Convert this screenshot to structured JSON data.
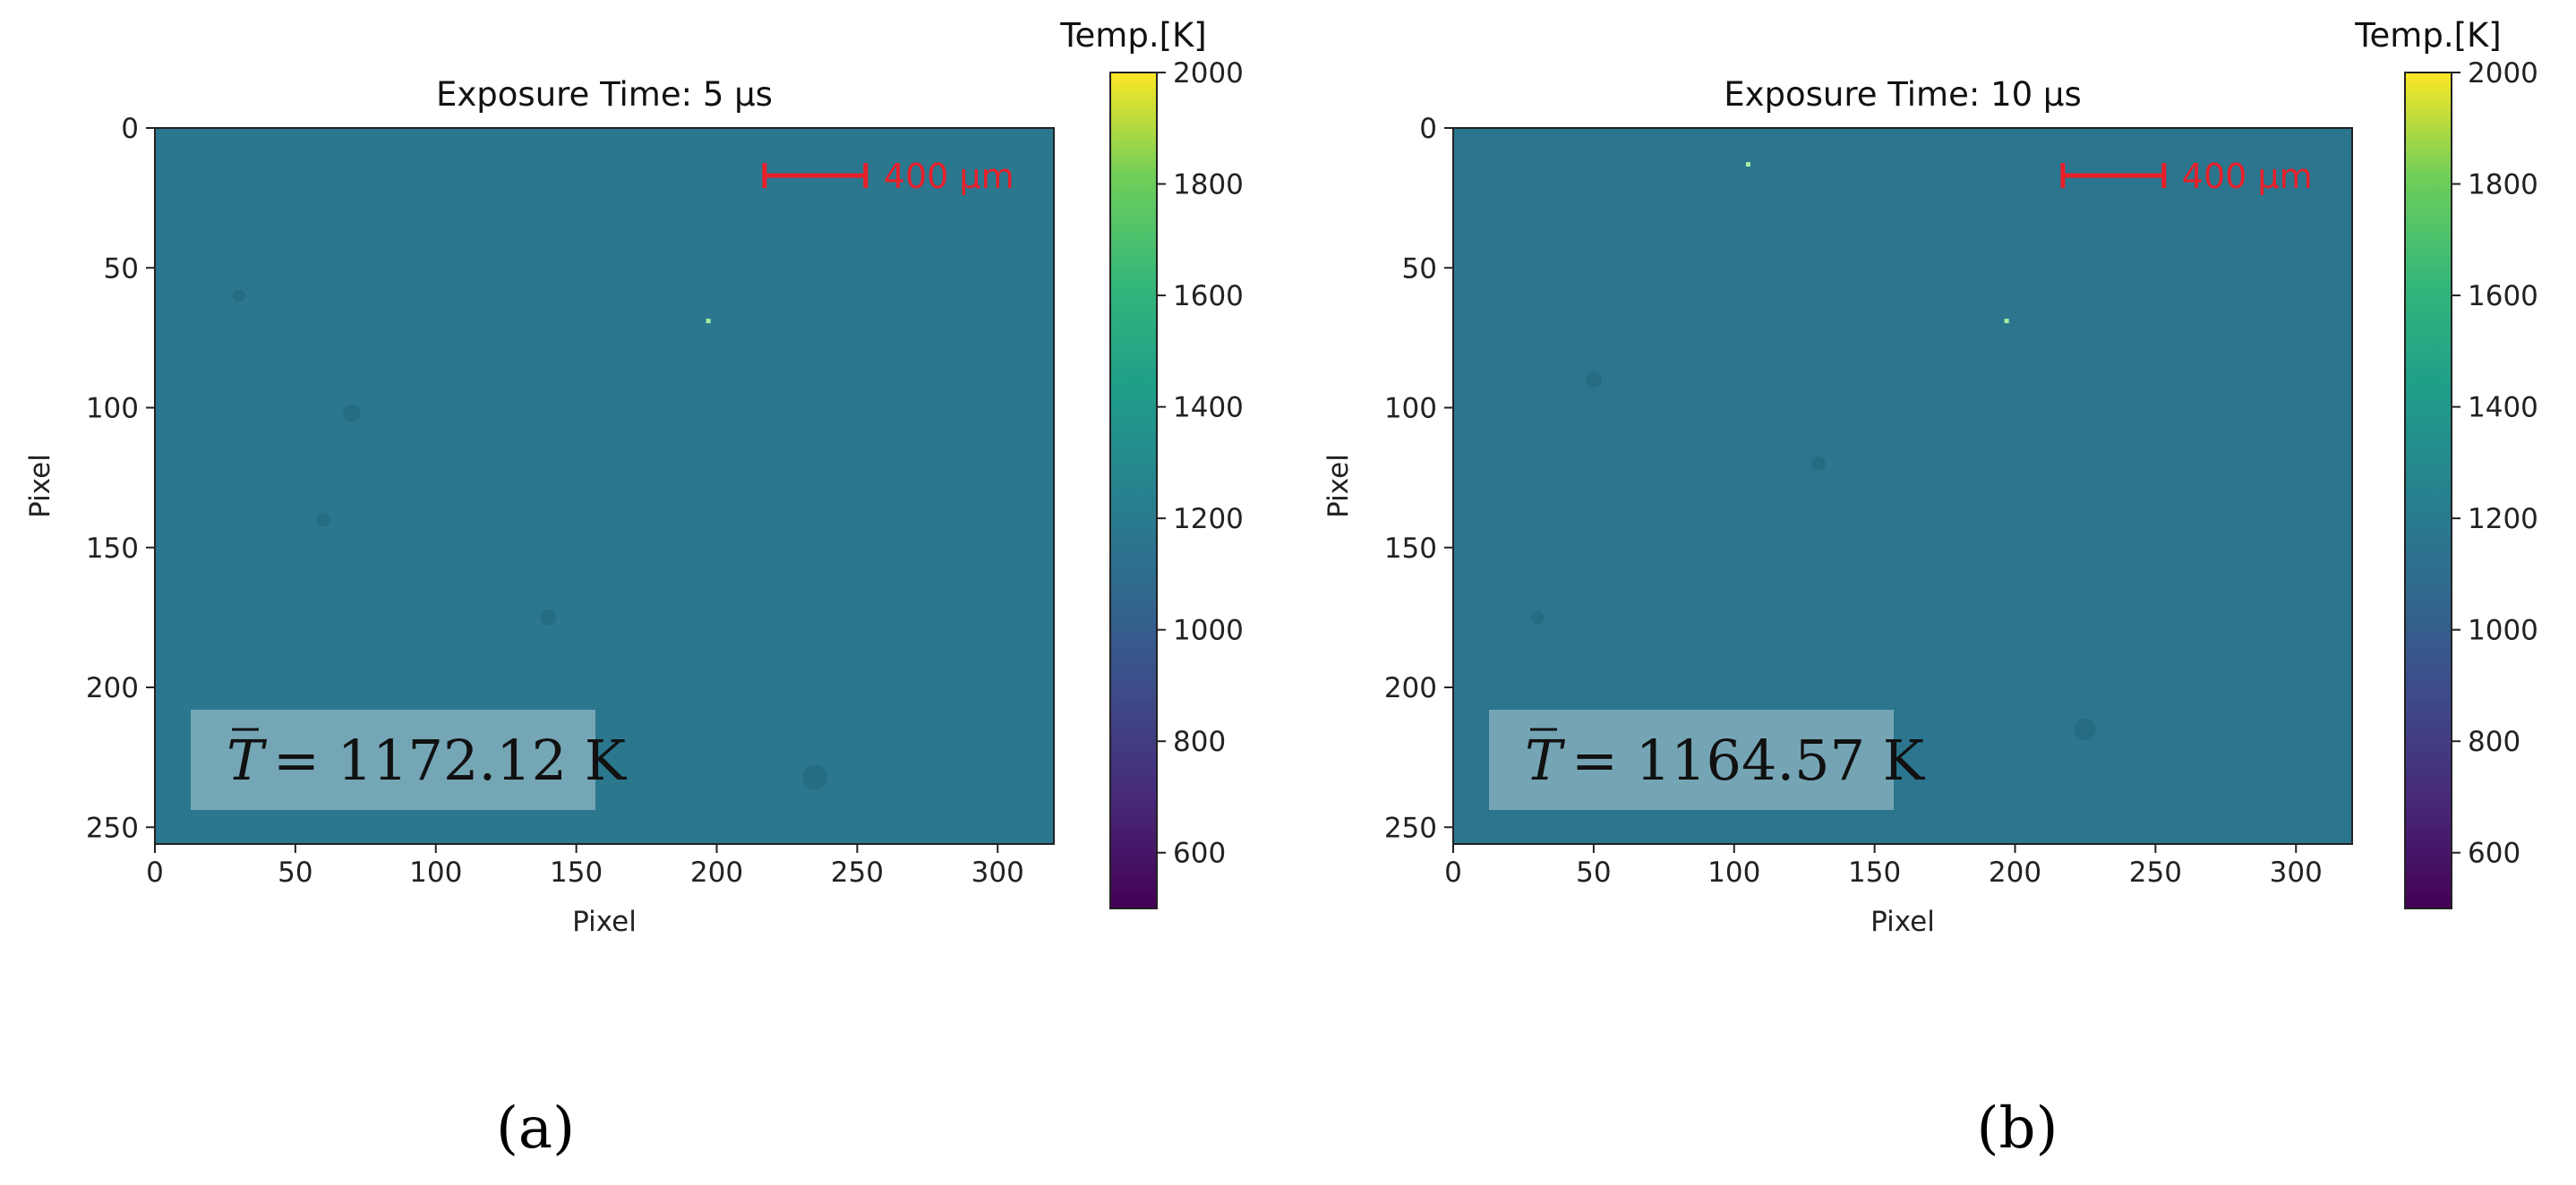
{
  "chart_data": [
    {
      "type": "heatmap",
      "panel_label": "(a)",
      "title": "Exposure Time: 5 μs",
      "xlabel": "Pixel",
      "ylabel": "Pixel",
      "x_ticks": [
        "0",
        "50",
        "100",
        "150",
        "200",
        "250",
        "300"
      ],
      "y_ticks": [
        "0",
        "50",
        "100",
        "150",
        "200",
        "250"
      ],
      "xlim": [
        0,
        320
      ],
      "ylim": [
        256,
        0
      ],
      "fill_value": 1172,
      "colormap": "viridis",
      "colorbar": {
        "title": "Temp.[K]",
        "range": [
          500,
          2000
        ],
        "ticks": [
          "600",
          "800",
          "1000",
          "1200",
          "1400",
          "1600",
          "1800",
          "2000"
        ]
      },
      "scale_bar_label": "400 μm",
      "scale_bar_color": "#e8202a",
      "mean_annotation": {
        "symbol": "T",
        "text": "= 1172.12 K"
      },
      "hot_pixels": [
        {
          "x": 197,
          "y": 69
        }
      ]
    },
    {
      "type": "heatmap",
      "panel_label": "(b)",
      "title": "Exposure Time: 10 μs",
      "xlabel": "Pixel",
      "ylabel": "Pixel",
      "x_ticks": [
        "0",
        "50",
        "100",
        "150",
        "200",
        "250",
        "300"
      ],
      "y_ticks": [
        "0",
        "50",
        "100",
        "150",
        "200",
        "250"
      ],
      "xlim": [
        0,
        320
      ],
      "ylim": [
        256,
        0
      ],
      "fill_value": 1164,
      "colormap": "viridis",
      "colorbar": {
        "title": "Temp.[K]",
        "range": [
          500,
          2000
        ],
        "ticks": [
          "600",
          "800",
          "1000",
          "1200",
          "1400",
          "1600",
          "1800",
          "2000"
        ]
      },
      "scale_bar_label": "400 μm",
      "scale_bar_color": "#e8202a",
      "mean_annotation": {
        "symbol": "T",
        "text": "= 1164.57 K"
      },
      "hot_pixels": [
        {
          "x": 105,
          "y": 13
        },
        {
          "x": 197,
          "y": 69
        }
      ]
    }
  ]
}
